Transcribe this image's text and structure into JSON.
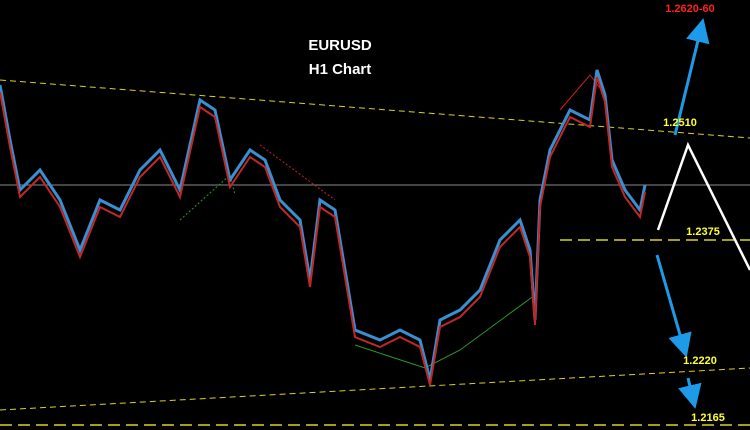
{
  "chart_data": {
    "type": "candlestick",
    "title": "EURUSD",
    "subtitle": "H1 Chart",
    "annotations": [
      "1.2620-60",
      "1.2510",
      "1.2375",
      "1.2220",
      "1.2165"
    ],
    "annotation_colors": [
      "#ff2020",
      "#ffff33",
      "#ffff33",
      "#ffff33",
      "#ffff33"
    ]
  }
}
